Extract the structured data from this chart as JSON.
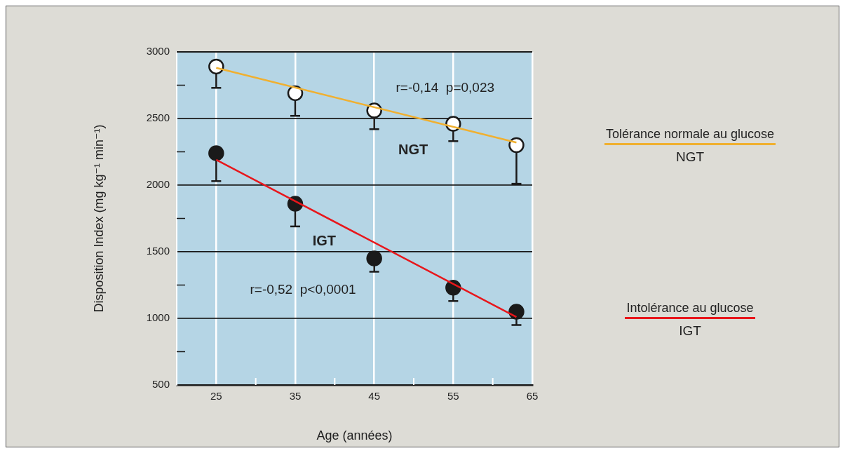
{
  "chart_data": {
    "type": "scatter",
    "xlabel": "Age (années)",
    "ylabel": "Disposition Index (mg kg⁻¹ min⁻¹)",
    "xlim": [
      20,
      65
    ],
    "xticks": [
      25,
      {
        "value": 30,
        "label": null
      },
      35,
      {
        "value": 40,
        "label": null
      },
      45,
      {
        "value": 50,
        "label": null
      },
      55,
      {
        "value": 60,
        "label": null
      },
      65
    ],
    "ylim": [
      500,
      3000
    ],
    "yticks": [
      500,
      {
        "value": 750,
        "label": null
      },
      1000,
      {
        "value": 1250,
        "label": null
      },
      1500,
      {
        "value": 1750,
        "label": null
      },
      2000,
      {
        "value": 2250,
        "label": null
      },
      2500,
      {
        "value": 2750,
        "label": null
      },
      3000
    ],
    "grid": true,
    "legend": "right",
    "marker": "circle",
    "series": [
      {
        "color": "#ffffff",
        "x": [
          25,
          35,
          45,
          55,
          63
        ],
        "values": [
          2890,
          2690,
          2560,
          2460,
          2300
        ],
        "errors": [
          [
            2730,
            2890
          ],
          [
            2520,
            2690
          ],
          [
            2420,
            2560
          ],
          [
            2330,
            2460
          ],
          [
            2010,
            2300
          ]
        ]
      },
      {
        "color": "#1a1a1a",
        "x": [
          25,
          35,
          45,
          55,
          63
        ],
        "values": [
          2240,
          1860,
          1450,
          1230,
          1050
        ],
        "errors": [
          [
            2030,
            2240
          ],
          [
            1690,
            1860
          ],
          [
            1350,
            1450
          ],
          [
            1130,
            1230
          ],
          [
            950,
            1050
          ]
        ]
      },
      {
        "name": "Tolérance normale au glucose",
        "type": "line",
        "marker": "none",
        "color": "#f0b030",
        "x": [
          25,
          63
        ],
        "values": [
          2880,
          2320
        ]
      },
      {
        "name": "Intolérance au glucose",
        "type": "line",
        "marker": "none",
        "color": "#e8161b",
        "x": [
          25,
          63
        ],
        "values": [
          2190,
          1010
        ]
      }
    ],
    "annotations": [
      "r=-0,14  p=0,023",
      "NGT",
      "IGT",
      "r=-0,52  p<0,0001",
      "NGT",
      "IGT"
    ]
  }
}
